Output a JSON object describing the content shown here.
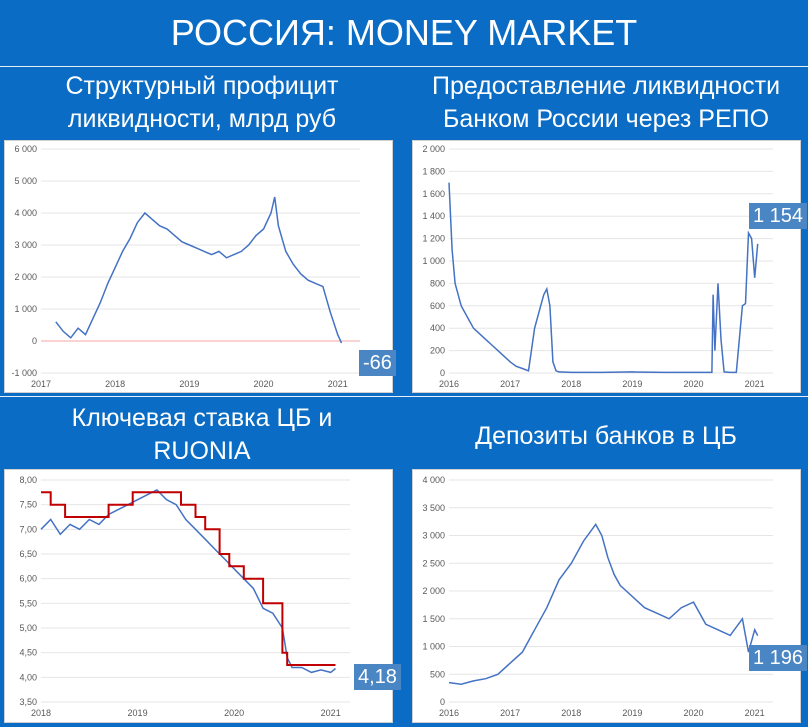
{
  "header": {
    "title": "РОССИЯ: MONEY MARKET"
  },
  "colors": {
    "background": "#0a6cc4",
    "series": "#4472c4",
    "key_rate": "#c00000",
    "zero_line": "#f4a6a6",
    "grid": "#e6e6e6",
    "callout": "#4a86c4"
  },
  "panels": [
    {
      "title_line1": "Структурный профицит",
      "title_line2": "ликвидности, млрд руб",
      "callout": "-66"
    },
    {
      "title_line1": "Предоставление ликвидности",
      "title_line2": "Банком России через РЕПО",
      "callout": "1 154"
    },
    {
      "title_line1": "Ключевая ставка ЦБ и",
      "title_line2": "RUONIA",
      "callout": "4,18"
    },
    {
      "title_line1": "Депозиты банков в ЦБ",
      "title_line2": "",
      "callout": "1 196"
    }
  ],
  "chart_data": [
    {
      "type": "line",
      "title": "Структурный профицит ликвидности, млрд руб",
      "xlim": [
        2017,
        2021.3
      ],
      "ylim": [
        -1000,
        6000
      ],
      "x_ticks": [
        "2017",
        "2018",
        "2019",
        "2020",
        "2021"
      ],
      "y_ticks": [
        "-1 000",
        "0",
        "1 000",
        "2 000",
        "3 000",
        "4 000",
        "5 000",
        "6 000"
      ],
      "series": [
        {
          "name": "",
          "x": [
            2017.2,
            2017.3,
            2017.4,
            2017.5,
            2017.6,
            2017.7,
            2017.8,
            2017.9,
            2018.0,
            2018.1,
            2018.2,
            2018.3,
            2018.4,
            2018.5,
            2018.6,
            2018.7,
            2018.8,
            2018.9,
            2019.0,
            2019.1,
            2019.2,
            2019.3,
            2019.4,
            2019.5,
            2019.6,
            2019.7,
            2019.8,
            2019.9,
            2020.0,
            2020.1,
            2020.15,
            2020.2,
            2020.3,
            2020.4,
            2020.5,
            2020.6,
            2020.7,
            2020.8,
            2020.9,
            2021.0,
            2021.05
          ],
          "y": [
            600,
            300,
            100,
            400,
            200,
            700,
            1200,
            1800,
            2300,
            2800,
            3200,
            3700,
            4000,
            3800,
            3600,
            3500,
            3300,
            3100,
            3000,
            2900,
            2800,
            2700,
            2800,
            2600,
            2700,
            2800,
            3000,
            3300,
            3500,
            4000,
            4500,
            3600,
            2800,
            2400,
            2100,
            1900,
            1800,
            1700,
            900,
            200,
            -66
          ]
        }
      ],
      "annotations": [
        "-66"
      ]
    },
    {
      "type": "line",
      "title": "Предоставление ликвидности Банком России через РЕПО",
      "xlim": [
        2016,
        2021.3
      ],
      "ylim": [
        0,
        2000
      ],
      "x_ticks": [
        "2016",
        "2017",
        "2018",
        "2019",
        "2020",
        "2021"
      ],
      "y_ticks": [
        "0",
        "200",
        "400",
        "600",
        "800",
        "1 000",
        "1 200",
        "1 400",
        "1 600",
        "1 800",
        "2 000"
      ],
      "series": [
        {
          "name": "",
          "x": [
            2016.0,
            2016.05,
            2016.1,
            2016.2,
            2016.3,
            2016.4,
            2016.5,
            2016.6,
            2016.7,
            2016.8,
            2016.9,
            2017.0,
            2017.1,
            2017.2,
            2017.3,
            2017.4,
            2017.5,
            2017.55,
            2017.6,
            2017.65,
            2017.7,
            2017.75,
            2017.8,
            2018.0,
            2018.5,
            2019.0,
            2019.5,
            2020.0,
            2020.3,
            2020.32,
            2020.35,
            2020.4,
            2020.45,
            2020.5,
            2020.6,
            2020.7,
            2020.8,
            2020.85,
            2020.9,
            2020.95,
            2021.0,
            2021.05
          ],
          "y": [
            1700,
            1100,
            800,
            600,
            500,
            400,
            350,
            300,
            250,
            200,
            150,
            100,
            60,
            40,
            20,
            400,
            600,
            700,
            750,
            600,
            100,
            20,
            10,
            5,
            5,
            10,
            5,
            5,
            5,
            700,
            200,
            800,
            300,
            10,
            5,
            5,
            600,
            620,
            1250,
            1200,
            850,
            1154
          ]
        }
      ],
      "annotations": [
        "1 154"
      ]
    },
    {
      "type": "line",
      "title": "Ключевая ставка ЦБ и RUONIA",
      "xlim": [
        2018,
        2021.2
      ],
      "ylim": [
        3.5,
        8.0
      ],
      "x_ticks": [
        "2018",
        "2019",
        "2020",
        "2021"
      ],
      "y_ticks": [
        "3,50",
        "4,00",
        "4,50",
        "5,00",
        "5,50",
        "6,00",
        "6,50",
        "7,00",
        "7,50",
        "8,00"
      ],
      "series": [
        {
          "name": "",
          "x": [
            2018.0,
            2018.1,
            2018.2,
            2018.3,
            2018.4,
            2018.5,
            2018.6,
            2018.7,
            2018.8,
            2018.9,
            2019.0,
            2019.1,
            2019.2,
            2019.3,
            2019.4,
            2019.5,
            2019.6,
            2019.7,
            2019.8,
            2019.9,
            2020.0,
            2020.1,
            2020.2,
            2020.3,
            2020.4,
            2020.5,
            2020.55,
            2020.6,
            2020.7,
            2020.8,
            2020.9,
            2021.0,
            2021.05
          ],
          "y": [
            7.0,
            7.2,
            6.9,
            7.1,
            7.0,
            7.2,
            7.1,
            7.3,
            7.4,
            7.5,
            7.6,
            7.7,
            7.8,
            7.6,
            7.5,
            7.2,
            7.0,
            6.8,
            6.6,
            6.4,
            6.2,
            6.0,
            5.8,
            5.4,
            5.3,
            5.0,
            4.4,
            4.2,
            4.2,
            4.1,
            4.15,
            4.1,
            4.18
          ]
        },
        {
          "name": "",
          "x": [
            2018.0,
            2018.1,
            2018.1,
            2018.25,
            2018.25,
            2018.7,
            2018.7,
            2018.95,
            2018.95,
            2019.45,
            2019.45,
            2019.6,
            2019.6,
            2019.7,
            2019.7,
            2019.85,
            2019.85,
            2019.95,
            2019.95,
            2020.1,
            2020.1,
            2020.3,
            2020.3,
            2020.5,
            2020.5,
            2020.55,
            2020.55,
            2021.05
          ],
          "y": [
            7.75,
            7.75,
            7.5,
            7.5,
            7.25,
            7.25,
            7.5,
            7.5,
            7.75,
            7.75,
            7.5,
            7.5,
            7.25,
            7.25,
            7.0,
            7.0,
            6.5,
            6.5,
            6.25,
            6.25,
            6.0,
            6.0,
            5.5,
            5.5,
            4.5,
            4.5,
            4.25,
            4.25
          ]
        }
      ],
      "annotations": [
        "4,18"
      ]
    },
    {
      "type": "line",
      "title": "Депозиты банков в ЦБ",
      "xlim": [
        2016,
        2021.3
      ],
      "ylim": [
        0,
        4000
      ],
      "x_ticks": [
        "2016",
        "2017",
        "2018",
        "2019",
        "2020",
        "2021"
      ],
      "y_ticks": [
        "0",
        "500",
        "1 000",
        "1 500",
        "2 000",
        "2 500",
        "3 000",
        "3 500",
        "4 000"
      ],
      "series": [
        {
          "name": "",
          "x": [
            2016.0,
            2016.2,
            2016.4,
            2016.6,
            2016.8,
            2017.0,
            2017.2,
            2017.4,
            2017.6,
            2017.8,
            2018.0,
            2018.2,
            2018.4,
            2018.5,
            2018.6,
            2018.7,
            2018.8,
            2018.9,
            2019.0,
            2019.2,
            2019.4,
            2019.6,
            2019.8,
            2020.0,
            2020.2,
            2020.4,
            2020.6,
            2020.8,
            2020.9,
            2021.0,
            2021.05
          ],
          "y": [
            350,
            320,
            380,
            420,
            500,
            700,
            900,
            1300,
            1700,
            2200,
            2500,
            2900,
            3200,
            3000,
            2600,
            2300,
            2100,
            2000,
            1900,
            1700,
            1600,
            1500,
            1700,
            1800,
            1400,
            1300,
            1200,
            1500,
            900,
            1300,
            1196
          ]
        }
      ],
      "annotations": [
        "1 196"
      ]
    }
  ]
}
